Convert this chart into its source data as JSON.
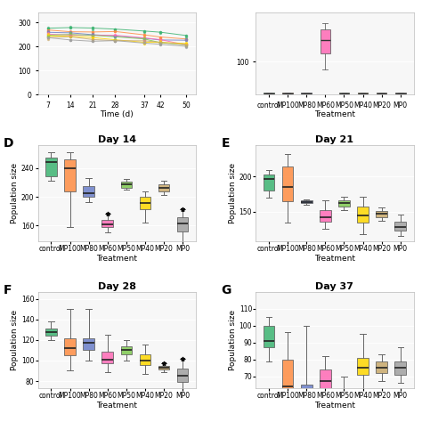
{
  "treatments": [
    "control",
    "MP100",
    "MP80",
    "MP60",
    "MP50",
    "MP40",
    "MP20",
    "MP0"
  ],
  "colors": [
    "#3cb371",
    "#ff8c42",
    "#6a7ec8",
    "#ff69b4",
    "#7ec850",
    "#ffd700",
    "#c8a96a",
    "#a0a0a0"
  ],
  "panels": {
    "D": {
      "title": "Day 14",
      "ylabel": "Population size",
      "ylim": [
        138,
        272
      ],
      "yticks": [
        160,
        200,
        240
      ],
      "boxes": [
        {
          "q1": 228,
          "median": 248,
          "q3": 255,
          "whislo": 222,
          "whishi": 262,
          "fliers": []
        },
        {
          "q1": 207,
          "median": 240,
          "q3": 252,
          "whislo": 158,
          "whishi": 262,
          "fliers": []
        },
        {
          "q1": 200,
          "median": 205,
          "q3": 215,
          "whislo": 193,
          "whishi": 226,
          "fliers": []
        },
        {
          "q1": 158,
          "median": 162,
          "q3": 168,
          "whislo": 150,
          "whishi": 176,
          "fliers": [
            176
          ]
        },
        {
          "q1": 213,
          "median": 217,
          "q3": 221,
          "whislo": 210,
          "whishi": 225,
          "fliers": []
        },
        {
          "q1": 183,
          "median": 192,
          "q3": 200,
          "whislo": 164,
          "whishi": 208,
          "fliers": []
        },
        {
          "q1": 208,
          "median": 212,
          "q3": 217,
          "whislo": 203,
          "whishi": 222,
          "fliers": []
        },
        {
          "q1": 152,
          "median": 163,
          "q3": 172,
          "whislo": 133,
          "whishi": 183,
          "fliers": [
            183
          ]
        }
      ]
    },
    "E": {
      "title": "Day 21",
      "ylabel": "Population size",
      "ylim": [
        108,
        245
      ],
      "yticks": [
        150,
        200
      ],
      "boxes": [
        {
          "q1": 180,
          "median": 197,
          "q3": 203,
          "whislo": 170,
          "whishi": 210,
          "fliers": []
        },
        {
          "q1": 165,
          "median": 185,
          "q3": 215,
          "whislo": 135,
          "whishi": 232,
          "fliers": []
        },
        {
          "q1": 162,
          "median": 164,
          "q3": 166,
          "whislo": 160,
          "whishi": 168,
          "fliers": []
        },
        {
          "q1": 136,
          "median": 142,
          "q3": 152,
          "whislo": 126,
          "whishi": 166,
          "fliers": []
        },
        {
          "q1": 158,
          "median": 162,
          "q3": 166,
          "whislo": 152,
          "whishi": 172,
          "fliers": []
        },
        {
          "q1": 135,
          "median": 145,
          "q3": 158,
          "whislo": 118,
          "whishi": 172,
          "fliers": []
        },
        {
          "q1": 143,
          "median": 147,
          "q3": 151,
          "whislo": 137,
          "whishi": 156,
          "fliers": []
        },
        {
          "q1": 123,
          "median": 129,
          "q3": 136,
          "whislo": 116,
          "whishi": 146,
          "fliers": []
        }
      ]
    },
    "F": {
      "title": "Day 28",
      "ylabel": "Population size",
      "ylim": [
        73,
        167
      ],
      "yticks": [
        80,
        100,
        120,
        140,
        160
      ],
      "boxes": [
        {
          "q1": 124,
          "median": 128,
          "q3": 131,
          "whislo": 120,
          "whishi": 138,
          "fliers": []
        },
        {
          "q1": 105,
          "median": 112,
          "q3": 122,
          "whislo": 90,
          "whishi": 150,
          "fliers": []
        },
        {
          "q1": 110,
          "median": 117,
          "q3": 122,
          "whislo": 100,
          "whishi": 150,
          "fliers": []
        },
        {
          "q1": 97,
          "median": 101,
          "q3": 109,
          "whislo": 89,
          "whishi": 125,
          "fliers": []
        },
        {
          "q1": 106,
          "median": 110,
          "q3": 114,
          "whislo": 100,
          "whishi": 120,
          "fliers": []
        },
        {
          "q1": 96,
          "median": 100,
          "q3": 106,
          "whislo": 87,
          "whishi": 116,
          "fliers": []
        },
        {
          "q1": 91,
          "median": 93,
          "q3": 95,
          "whislo": 89,
          "whishi": 97,
          "fliers": [
            97
          ]
        },
        {
          "q1": 79,
          "median": 85,
          "q3": 92,
          "whislo": 72,
          "whishi": 102,
          "fliers": [
            102
          ]
        }
      ]
    },
    "G": {
      "title": "Day 37",
      "ylabel": "Population size",
      "ylim": [
        63,
        120
      ],
      "yticks": [
        70,
        80,
        90,
        100,
        110
      ],
      "boxes": [
        {
          "q1": 87,
          "median": 91,
          "q3": 100,
          "whislo": 79,
          "whishi": 105,
          "fliers": []
        },
        {
          "q1": 58,
          "median": 64,
          "q3": 80,
          "whislo": 48,
          "whishi": 96,
          "fliers": []
        },
        {
          "q1": 59,
          "median": 62,
          "q3": 65,
          "whislo": 53,
          "whishi": 100,
          "fliers": []
        },
        {
          "q1": 61,
          "median": 67,
          "q3": 74,
          "whislo": 54,
          "whishi": 82,
          "fliers": []
        },
        {
          "q1": 56,
          "median": 59,
          "q3": 63,
          "whislo": 50,
          "whishi": 70,
          "fliers": []
        },
        {
          "q1": 71,
          "median": 75,
          "q3": 81,
          "whislo": 59,
          "whishi": 95,
          "fliers": []
        },
        {
          "q1": 72,
          "median": 75,
          "q3": 79,
          "whislo": 67,
          "whishi": 83,
          "fliers": []
        },
        {
          "q1": 71,
          "median": 75,
          "q3": 79,
          "whislo": 66,
          "whishi": 87,
          "fliers": []
        }
      ]
    }
  },
  "top_left": {
    "xlabel": "Time (d)",
    "xticks": [
      7,
      14,
      21,
      28,
      37,
      42,
      50
    ],
    "ylim": [
      0,
      350
    ],
    "ylabel": ""
  },
  "top_right": {
    "xlabel": "Treatment",
    "ylabel": "",
    "ylim": [
      70,
      145
    ],
    "yticks": [
      100
    ],
    "mp60_box": {
      "q1": 108,
      "median": 120,
      "q3": 130,
      "whislo": 93,
      "whishi": 135,
      "fliers": []
    }
  },
  "background_color": "#f7f7f7",
  "grid_color": "#ffffff",
  "xlabel": "Treatment",
  "fontsize_title": 8,
  "fontsize_label": 6.5,
  "fontsize_tick": 5.5,
  "fontsize_panel_label": 10
}
